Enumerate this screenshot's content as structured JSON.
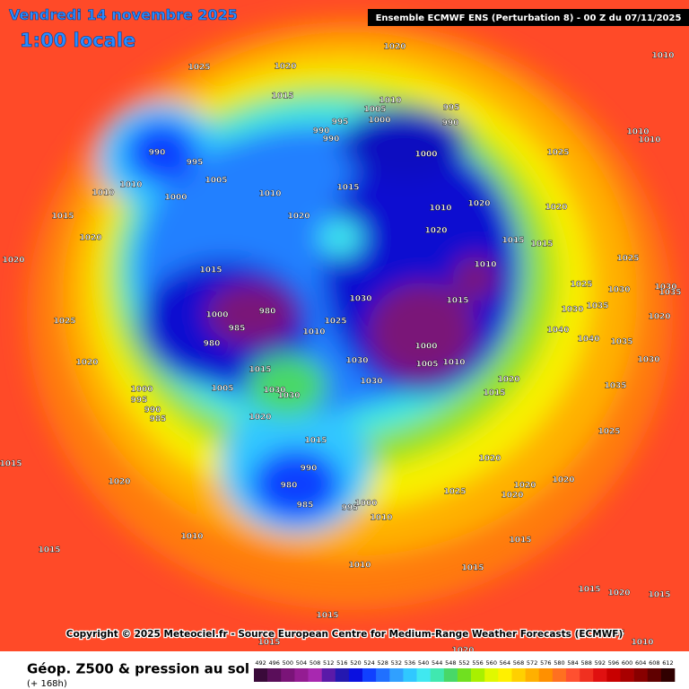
{
  "header": {
    "date": "Vendredi 14 novembre 2025",
    "time": "1:00 locale",
    "model": "Ensemble ECMWF ENS  (Perturbation 8)  - 00 Z du 07/11/2025"
  },
  "copyright": "Copyright © 2025 Meteociel.fr - Source European Centre for Medium-Range Weather Forecasts (ECMWF)",
  "footer": {
    "title": "Géop. Z500 & pression au sol",
    "subtitle": "(+ 168h)"
  },
  "legend": {
    "values": [
      492,
      496,
      500,
      504,
      508,
      512,
      516,
      520,
      524,
      528,
      532,
      536,
      540,
      544,
      548,
      552,
      556,
      560,
      564,
      568,
      572,
      576,
      580,
      584,
      588,
      592,
      596,
      600,
      604,
      608,
      612
    ],
    "colors": [
      "#3a0a3a",
      "#5a0e5a",
      "#7a1478",
      "#941c92",
      "#a828b0",
      "#5a1aa8",
      "#2418b0",
      "#0a10e0",
      "#1040ff",
      "#2070ff",
      "#30a0ff",
      "#30c8ff",
      "#40e8f0",
      "#40e8b0",
      "#48d868",
      "#70e020",
      "#a8f000",
      "#e0f800",
      "#fff000",
      "#ffd000",
      "#ffb000",
      "#ff9000",
      "#ff7020",
      "#ff5030",
      "#f03020",
      "#e01010",
      "#c80000",
      "#a80000",
      "#880000",
      "#600000",
      "#300000"
    ]
  },
  "pressure_labels": [
    1025,
    1020,
    1020,
    1010,
    1015,
    1010,
    1005,
    1000,
    995,
    990,
    995,
    990,
    990,
    990,
    995,
    1005,
    1010,
    1010,
    1000,
    1010,
    1015,
    1020,
    1015,
    1020,
    1020,
    1015,
    1025,
    1020,
    1000,
    980,
    985,
    980,
    1005,
    1000,
    995,
    990,
    985,
    1010,
    1025,
    1030,
    1030,
    1030,
    1015,
    1030,
    1030,
    1020,
    1015,
    1000,
    1005,
    1010,
    1015,
    1000,
    1020,
    1010,
    1020,
    1010,
    1015,
    1025,
    1020,
    1015,
    1025,
    1030,
    1035,
    1040,
    1040,
    1035,
    1030,
    1035,
    1025,
    1020,
    1020,
    1020,
    1015,
    1025,
    1020,
    1020,
    990,
    980,
    985,
    995,
    1000,
    1010,
    1015,
    1010,
    1015,
    1015,
    1020,
    1015,
    1015,
    1020,
    1015,
    1010,
    1015,
    1015,
    1020,
    1010,
    1015,
    1010,
    1010,
    1030,
    1025,
    1030,
    1035,
    1020
  ]
}
